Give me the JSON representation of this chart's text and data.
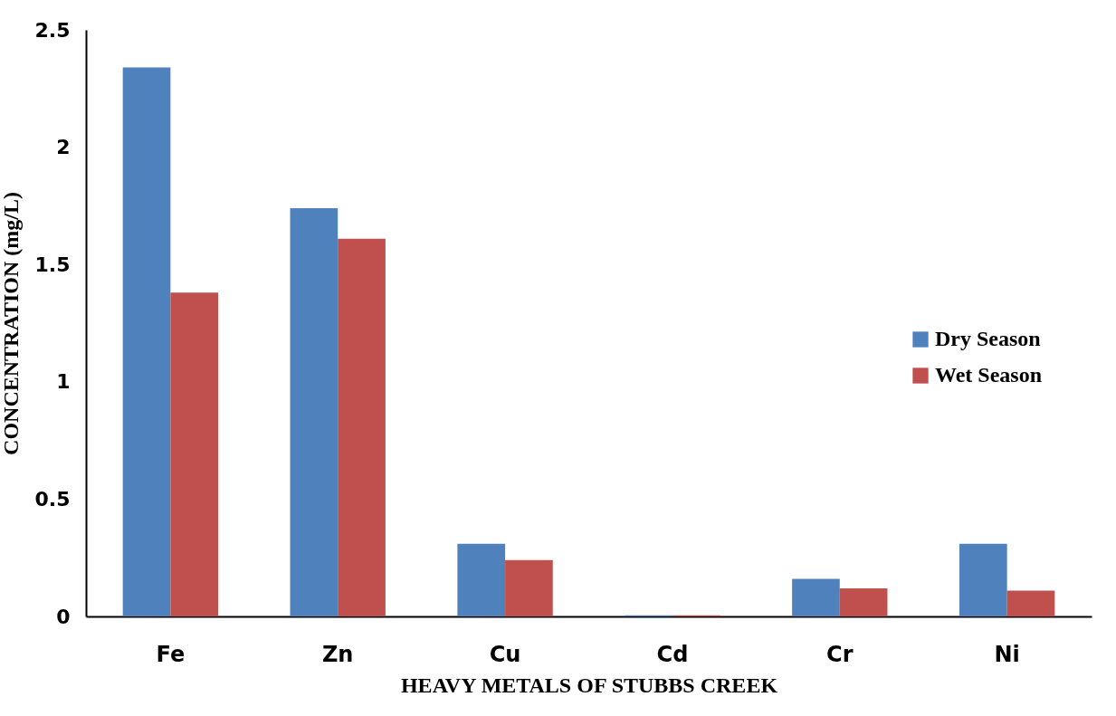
{
  "chart_data": {
    "type": "bar",
    "xlabel": "HEAVY METALS OF STUBBS CREEK",
    "ylabel": "CONCENTRATION (mg/L)",
    "categories": [
      "Fe",
      "Zn",
      "Cu",
      "Cd",
      "Cr",
      "Ni"
    ],
    "series": [
      {
        "name": "Dry Season",
        "color": "#4f81bd",
        "values": [
          2.34,
          1.74,
          0.31,
          0.005,
          0.16,
          0.31
        ]
      },
      {
        "name": "Wet Season",
        "color": "#c0504d",
        "values": [
          1.38,
          1.61,
          0.24,
          0.005,
          0.12,
          0.11
        ]
      }
    ],
    "ylim": [
      0,
      2.5
    ],
    "yticks": [
      0,
      0.5,
      1,
      1.5,
      2,
      2.5
    ],
    "grid": false,
    "legend": "right"
  }
}
